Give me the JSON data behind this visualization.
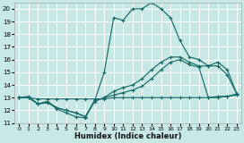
{
  "xlabel": "Humidex (Indice chaleur)",
  "bg_color": "#c8e8e5",
  "grid_color": "#ffffff",
  "line_color": "#1a6b6b",
  "xlim": [
    0,
    23
  ],
  "ylim": [
    11,
    20.5
  ],
  "xticks": [
    0,
    1,
    2,
    3,
    4,
    5,
    6,
    7,
    8,
    9,
    10,
    11,
    12,
    13,
    14,
    15,
    16,
    17,
    18,
    19,
    20,
    21,
    22,
    23
  ],
  "yticks": [
    11,
    12,
    13,
    14,
    15,
    16,
    17,
    18,
    19,
    20
  ],
  "line1_x": [
    0,
    1,
    2,
    3,
    4,
    5,
    6,
    7,
    8,
    9,
    10,
    11,
    12,
    13,
    14,
    15,
    16,
    17,
    18,
    19,
    20,
    21,
    22,
    23
  ],
  "line1_y": [
    13.0,
    13.1,
    12.5,
    12.7,
    12.1,
    11.8,
    11.5,
    11.4,
    12.8,
    15.0,
    19.3,
    19.1,
    20.0,
    20.0,
    20.5,
    20.0,
    19.3,
    17.5,
    16.2,
    16.0,
    15.5,
    15.5,
    14.8,
    13.3
  ],
  "line2_x": [
    0,
    1,
    2,
    3,
    4,
    5,
    6,
    7,
    8,
    9,
    10,
    11,
    12,
    13,
    14,
    15,
    16,
    17,
    18,
    19,
    20,
    21,
    22,
    23
  ],
  "line2_y": [
    13.0,
    13.0,
    12.5,
    12.7,
    12.2,
    12.0,
    11.8,
    11.5,
    12.8,
    13.0,
    13.5,
    13.8,
    14.0,
    14.5,
    15.2,
    15.8,
    16.2,
    16.2,
    15.8,
    15.5,
    15.5,
    15.8,
    15.2,
    13.3
  ],
  "line3_x": [
    0,
    1,
    2,
    3,
    4,
    5,
    6,
    7,
    8,
    9,
    10,
    11,
    12,
    13,
    14,
    15,
    16,
    17,
    18,
    19,
    20,
    21,
    22,
    23
  ],
  "line3_y": [
    13.0,
    13.0,
    12.5,
    12.6,
    12.2,
    12.0,
    11.8,
    11.5,
    12.7,
    13.0,
    13.2,
    13.4,
    13.6,
    13.9,
    14.5,
    15.2,
    15.8,
    16.0,
    15.6,
    15.4,
    13.0,
    13.1,
    13.1,
    13.2
  ],
  "line4_x": [
    0,
    1,
    2,
    3,
    4,
    5,
    6,
    7,
    8,
    9,
    10,
    11,
    12,
    13,
    14,
    15,
    16,
    17,
    18,
    19,
    20,
    21,
    22,
    23
  ],
  "line4_y": [
    13.0,
    13.0,
    12.9,
    12.9,
    12.9,
    12.9,
    12.9,
    12.9,
    12.9,
    12.9,
    13.0,
    13.0,
    13.0,
    13.0,
    13.0,
    13.0,
    13.0,
    13.0,
    13.0,
    13.0,
    13.0,
    13.0,
    13.1,
    13.3
  ]
}
